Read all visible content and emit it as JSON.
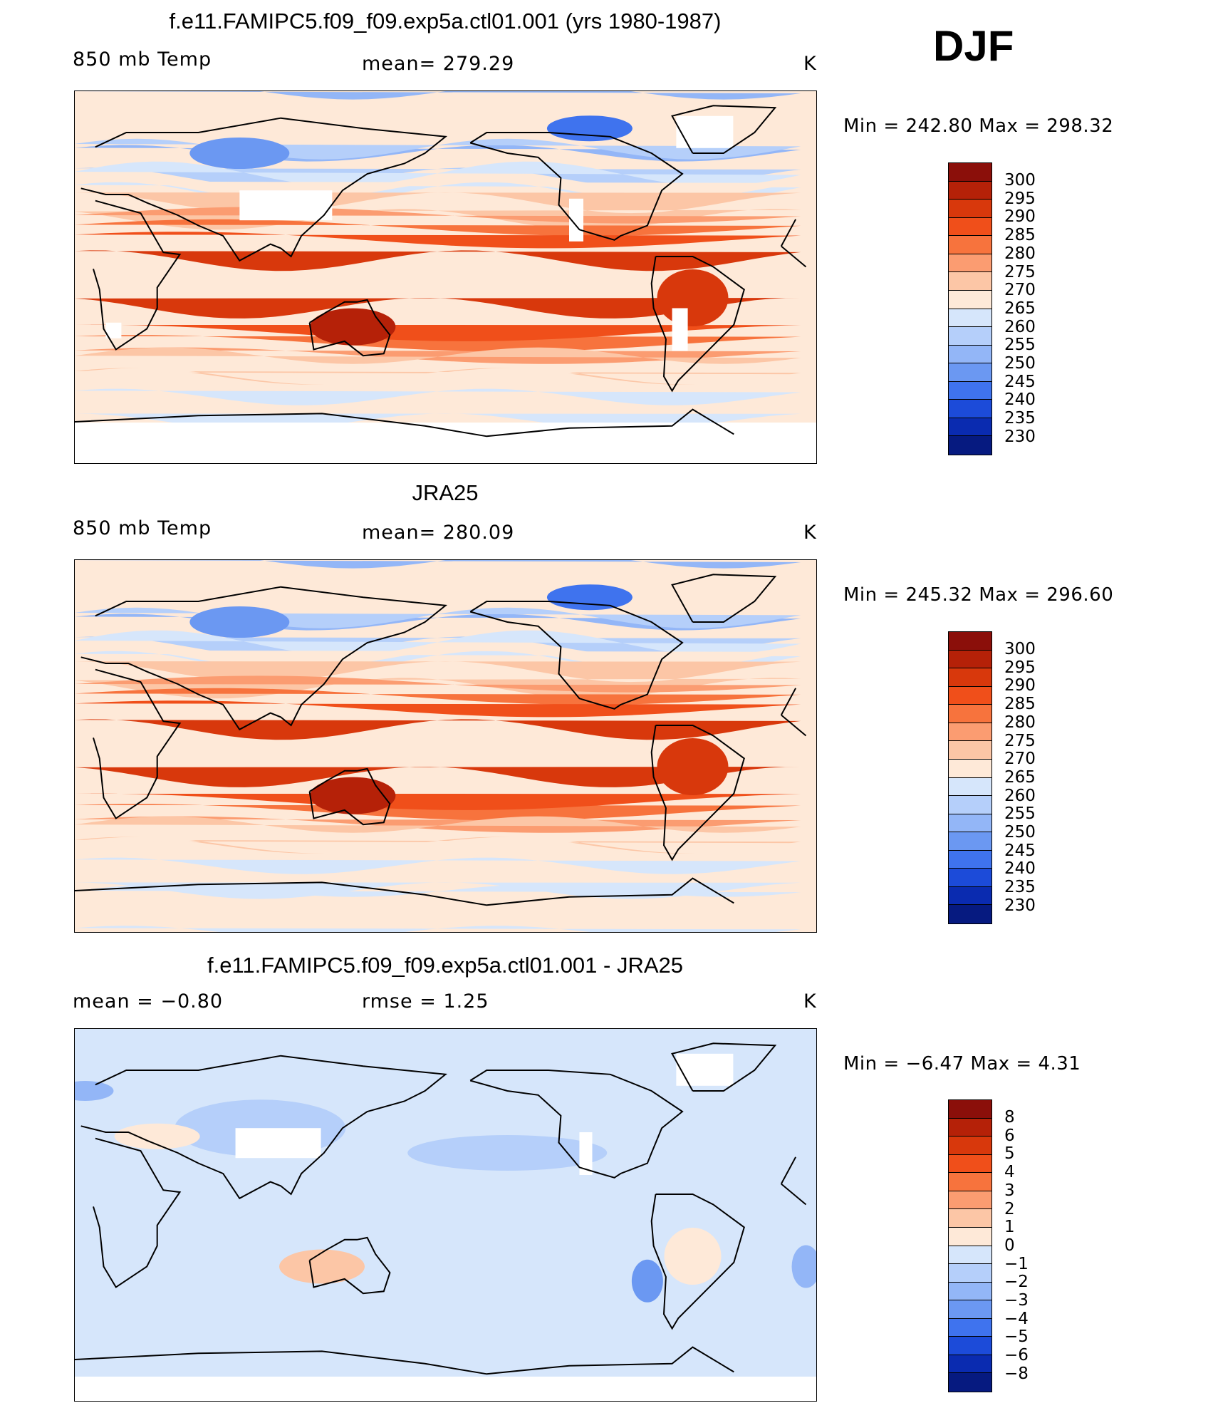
{
  "season": "DJF",
  "panels": [
    {
      "title": "f.e11.FAMIPC5.f09_f09.exp5a.ctl01.001 (yrs 1980-1987)",
      "left_label": "850 mb Temp",
      "center_label": "mean=  279.29",
      "units": "K",
      "minmax": "Min  =  242.80  Max  =  298.32",
      "colorbar": {
        "labels": [
          "300",
          "295",
          "290",
          "285",
          "280",
          "275",
          "270",
          "265",
          "260",
          "255",
          "250",
          "245",
          "240",
          "235",
          "230"
        ],
        "colors": [
          "#8b0f0a",
          "#b52108",
          "#d8380c",
          "#f04f1a",
          "#f7733d",
          "#fb9c71",
          "#fcc6a6",
          "#fee9d8",
          "#d6e6fb",
          "#b5cffa",
          "#93b6f7",
          "#6b98f2",
          "#3f73ee",
          "#1c4bd9",
          "#0a2bb0",
          "#061a80"
        ]
      },
      "field": "model"
    },
    {
      "title": "JRA25",
      "left_label": "850 mb Temp",
      "center_label": "mean=  280.09",
      "units": "K",
      "minmax": "Min  =  245.32  Max  =  296.60",
      "colorbar": {
        "labels": [
          "300",
          "295",
          "290",
          "285",
          "280",
          "275",
          "270",
          "265",
          "260",
          "255",
          "250",
          "245",
          "240",
          "235",
          "230"
        ],
        "colors": [
          "#8b0f0a",
          "#b52108",
          "#d8380c",
          "#f04f1a",
          "#f7733d",
          "#fb9c71",
          "#fcc6a6",
          "#fee9d8",
          "#d6e6fb",
          "#b5cffa",
          "#93b6f7",
          "#6b98f2",
          "#3f73ee",
          "#1c4bd9",
          "#0a2bb0",
          "#061a80"
        ]
      },
      "field": "obs"
    },
    {
      "title": "f.e11.FAMIPC5.f09_f09.exp5a.ctl01.001 - JRA25",
      "left_label": "mean =    −0.80",
      "center_label": "rmse =     1.25",
      "units": "K",
      "minmax": "Min  =    −6.47  Max  =     4.31",
      "colorbar": {
        "labels": [
          "8",
          "6",
          "5",
          "4",
          "3",
          "2",
          "1",
          "0",
          "−1",
          "−2",
          "−3",
          "−4",
          "−5",
          "−6",
          "−8"
        ],
        "colors": [
          "#8b0f0a",
          "#b52108",
          "#d8380c",
          "#f04f1a",
          "#f7733d",
          "#fb9c71",
          "#fcc6a6",
          "#fee9d8",
          "#d6e6fb",
          "#b5cffa",
          "#93b6f7",
          "#6b98f2",
          "#3f73ee",
          "#1c4bd9",
          "#0a2bb0",
          "#061a80"
        ]
      },
      "field": "diff"
    }
  ]
}
